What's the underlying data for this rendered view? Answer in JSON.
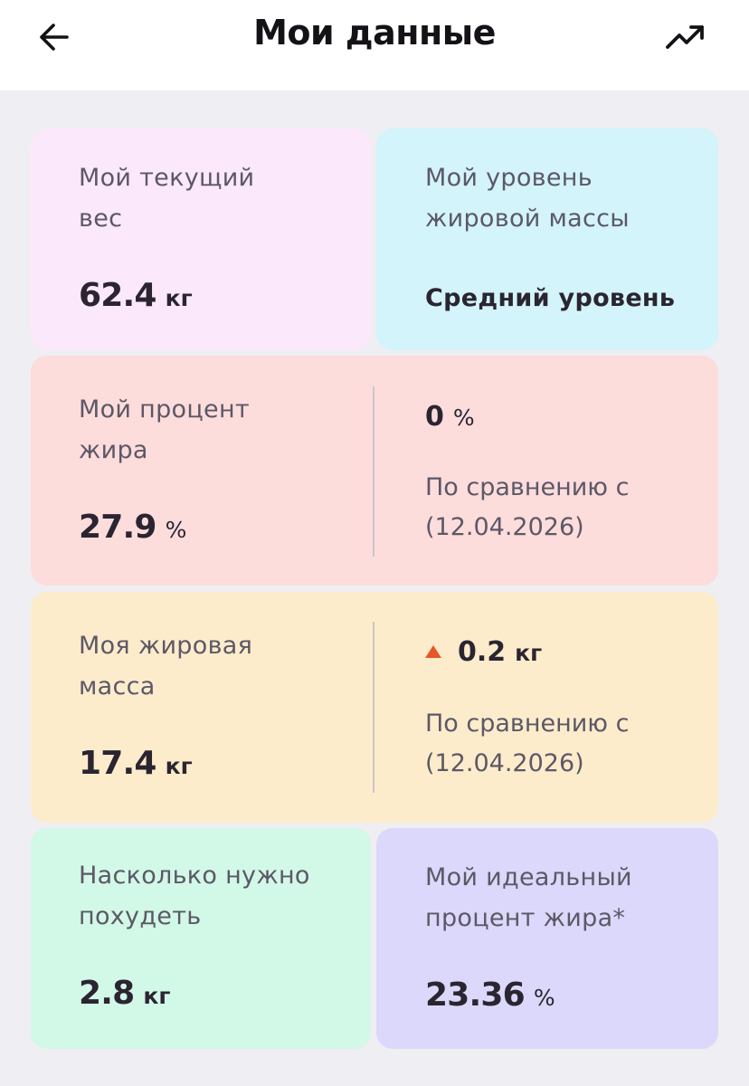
{
  "header": {
    "title": "Мои данные",
    "back_icon": "arrow-left-icon",
    "trend_icon": "trending-up-icon"
  },
  "cards": {
    "weight": {
      "label_line1": "Мой текущий",
      "label_line2": "вес",
      "value": "62.4",
      "unit": "кг",
      "color": "#fce8fb"
    },
    "fat_level": {
      "label_line1": "Мой уровень",
      "label_line2": "жировой массы",
      "value": "Средний уровень",
      "color": "#d3f4fb"
    },
    "fat_percent": {
      "label_line1": "Мой процент",
      "label_line2": "жира",
      "value": "27.9",
      "unit": "%",
      "delta_value": "0",
      "delta_unit": "%",
      "compare_line1": "По сравнению с",
      "compare_line2": "(12.04.2026)",
      "color": "#fddcdc"
    },
    "fat_mass": {
      "label_line1": "Моя жировая",
      "label_line2": "масса",
      "value": "17.4",
      "unit": "кг",
      "delta_value": "0.2",
      "delta_unit": "кг",
      "delta_direction": "up",
      "delta_color": "#e8552a",
      "compare_line1": "По сравнению с",
      "compare_line2": "(12.04.2026)",
      "color": "#fdeccc"
    },
    "to_lose": {
      "label_line1": "Насколько нужно",
      "label_line2": "похудеть",
      "value": "2.8",
      "unit": "кг",
      "color": "#d2f8e8"
    },
    "ideal_fat": {
      "label_line1": "Мой идеальный",
      "label_line2": "процент жира*",
      "value": "23.36",
      "unit": "%",
      "color": "#dbd8fb"
    }
  }
}
